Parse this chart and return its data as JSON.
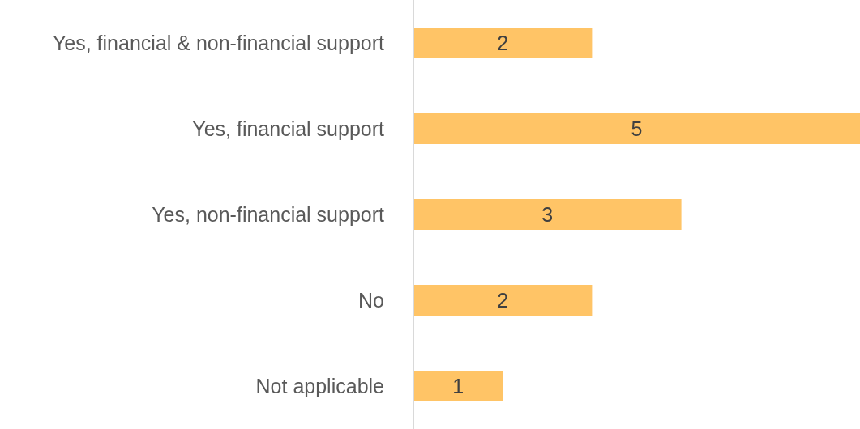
{
  "chart_data": {
    "type": "bar",
    "orientation": "horizontal",
    "categories": [
      "Yes, financial & non-financial support",
      "Yes, financial support",
      "Yes, non-financial support",
      "No",
      "Not applicable"
    ],
    "values": [
      2,
      5,
      3,
      2,
      1
    ],
    "color": "#ffc466",
    "data_labels": true
  }
}
